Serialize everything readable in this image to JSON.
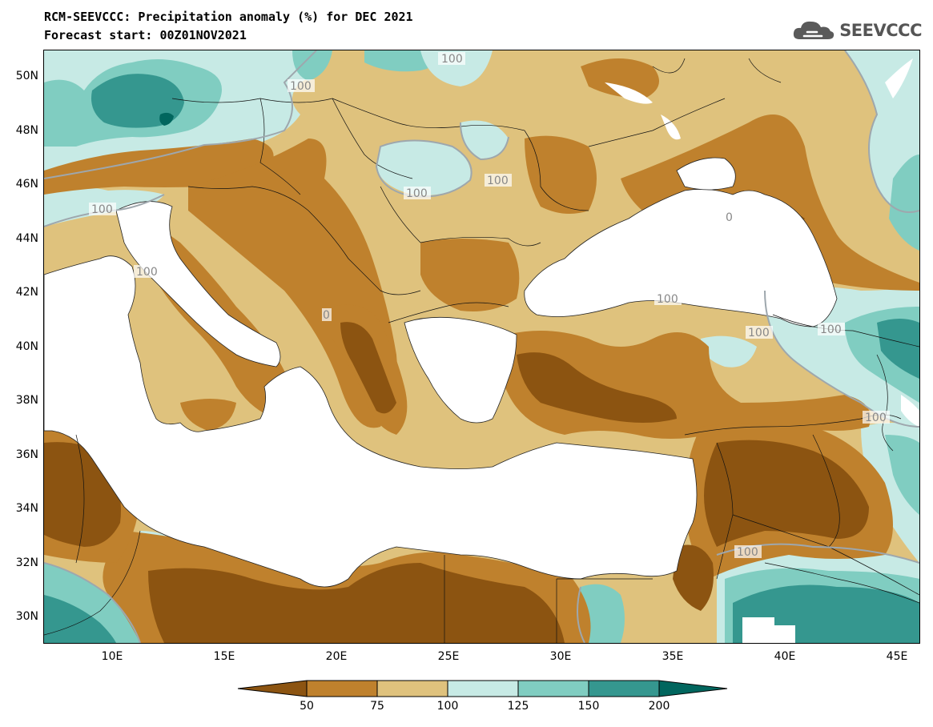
{
  "title": {
    "line1": "RCM-SEEVCCC: Precipitation anomaly (%) for DEC 2021",
    "line2": "Forecast start: 00Z01NOV2021"
  },
  "logo": {
    "text": "SEEVCCC",
    "icon": "cloud-icon"
  },
  "chart_data": {
    "type": "map",
    "variable": "Precipitation anomaly (%)",
    "lat_ticks": [
      "50N",
      "48N",
      "46N",
      "44N",
      "42N",
      "40N",
      "38N",
      "36N",
      "34N",
      "32N",
      "30N"
    ],
    "lon_ticks": [
      "10E",
      "15E",
      "20E",
      "25E",
      "30E",
      "35E",
      "40E",
      "45E"
    ],
    "lat_range": [
      29,
      51
    ],
    "lon_range": [
      7,
      46
    ],
    "colorbar": {
      "levels": [
        "50",
        "75",
        "100",
        "125",
        "150",
        "200"
      ],
      "colors": [
        "#8c5411",
        "#bf812d",
        "#dfc27d",
        "#c7eae5",
        "#80cdc1",
        "#35978f",
        "#01665e"
      ]
    },
    "contour_labels": [
      "100",
      "100",
      "100",
      "100",
      "100",
      "100",
      "100",
      "100",
      "100",
      "100",
      "100",
      "0",
      "0"
    ]
  }
}
